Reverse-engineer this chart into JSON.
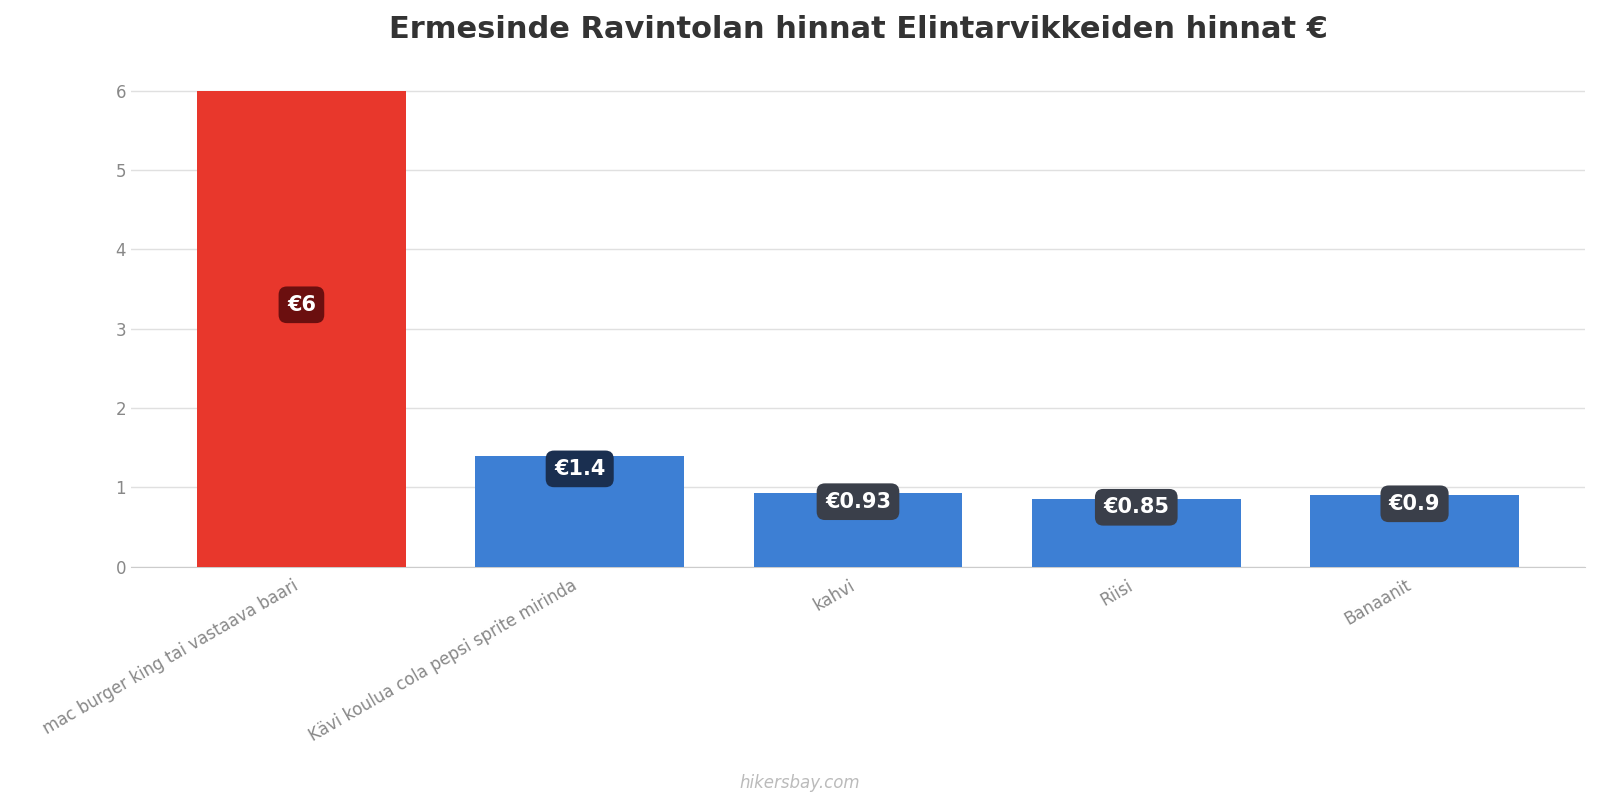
{
  "title": "Ermesinde Ravintolan hinnat Elintarvikkeiden hinnat €",
  "categories": [
    "mac burger king tai vastaava baari",
    "Kävi koulua cola pepsi sprite mirinda",
    "kahvi",
    "Riisi",
    "Banaanit"
  ],
  "values": [
    6.0,
    1.4,
    0.93,
    0.85,
    0.9
  ],
  "bar_colors": [
    "#e8372c",
    "#3d7fd4",
    "#3d7fd4",
    "#3d7fd4",
    "#3d7fd4"
  ],
  "label_texts": [
    "€6",
    "€1.4",
    "€0.93",
    "€0.85",
    "€0.9"
  ],
  "label_bg_colors": [
    "#6b0f0f",
    "#1a2f50",
    "#3a3f4a",
    "#3a3f4a",
    "#3a3f4a"
  ],
  "ylim": [
    0,
    6.4
  ],
  "yticks": [
    0,
    1,
    2,
    3,
    4,
    5,
    6
  ],
  "title_fontsize": 22,
  "tick_label_fontsize": 12,
  "label_fontsize": 15,
  "watermark": "hikersbay.com",
  "background_color": "#ffffff",
  "grid_color": "#e0e0e0"
}
